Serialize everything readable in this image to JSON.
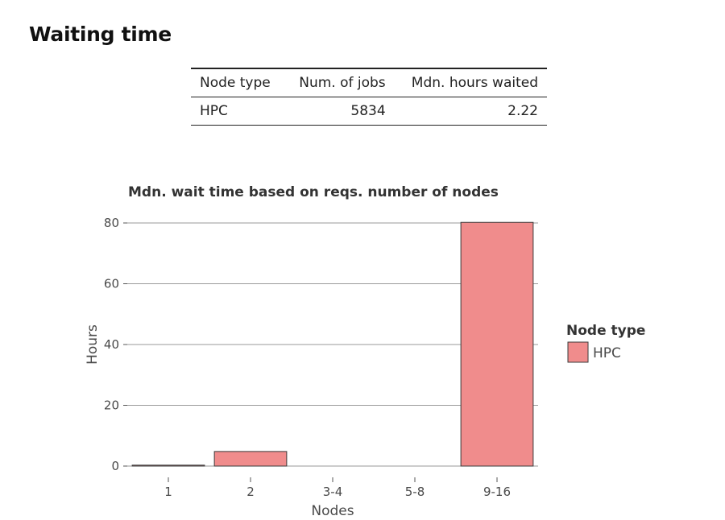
{
  "page": {
    "title": "Waiting time"
  },
  "summary_table": {
    "headers": [
      "Node type",
      "Num. of jobs",
      "Mdn. hours waited"
    ],
    "rows": [
      [
        "HPC",
        "5834",
        "2.22"
      ]
    ]
  },
  "colors": {
    "hpc": "#f08c8c",
    "bar_stroke": "#3a3a3a",
    "grid": "#9a9a9a"
  },
  "chart_data": {
    "type": "bar",
    "title": "Mdn. wait time based on reqs. number of nodes",
    "xlabel": "Nodes",
    "ylabel": "Hours",
    "categories": [
      "1",
      "2",
      "3-4",
      "5-8",
      "9-16"
    ],
    "series": [
      {
        "name": "HPC",
        "values": [
          0.3,
          4.8,
          0,
          0,
          80.2
        ]
      }
    ],
    "ylim": [
      0,
      80
    ],
    "yticks": [
      0,
      20,
      40,
      60,
      80
    ],
    "grid": true,
    "legend": {
      "title": "Node type",
      "position": "right"
    }
  }
}
